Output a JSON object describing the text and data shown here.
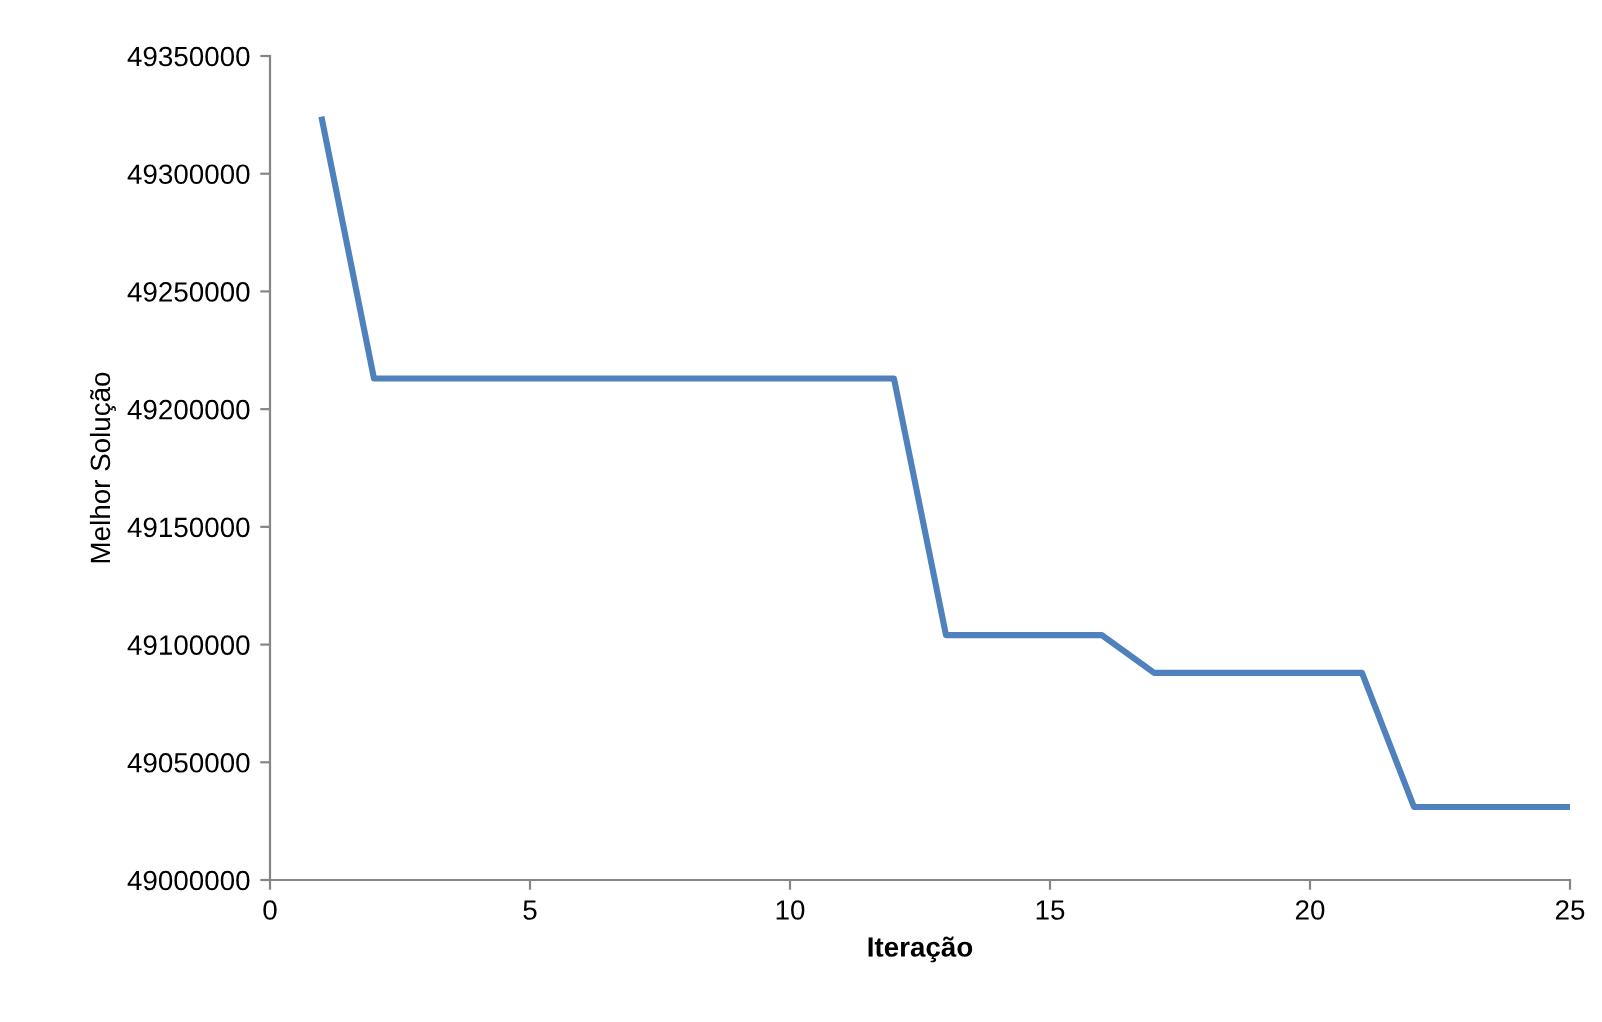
{
  "chart_data": {
    "type": "line",
    "xlabel": "Iteração",
    "ylabel": "Melhor Solução",
    "x": [
      1,
      2,
      3,
      4,
      5,
      6,
      7,
      8,
      9,
      10,
      11,
      12,
      13,
      14,
      15,
      16,
      17,
      18,
      19,
      20,
      21,
      22,
      23,
      24,
      25
    ],
    "series": [
      {
        "color": "#4f81bd",
        "values": [
          49323000,
          49213000,
          49213000,
          49213000,
          49213000,
          49213000,
          49213000,
          49213000,
          49213000,
          49213000,
          49213000,
          49213000,
          49104000,
          49104000,
          49104000,
          49104000,
          49088000,
          49088000,
          49088000,
          49088000,
          49088000,
          49031000,
          49031000,
          49031000,
          49031000
        ]
      }
    ],
    "xlim": [
      0,
      25
    ],
    "xticks": [
      0,
      5,
      10,
      15,
      20,
      25
    ],
    "ylim": [
      49000000,
      49350000
    ],
    "yticks": [
      49000000,
      49050000,
      49100000,
      49150000,
      49200000,
      49250000,
      49300000,
      49350000
    ],
    "grid": false,
    "legend": false,
    "marker": "none",
    "line_style": "solid"
  }
}
